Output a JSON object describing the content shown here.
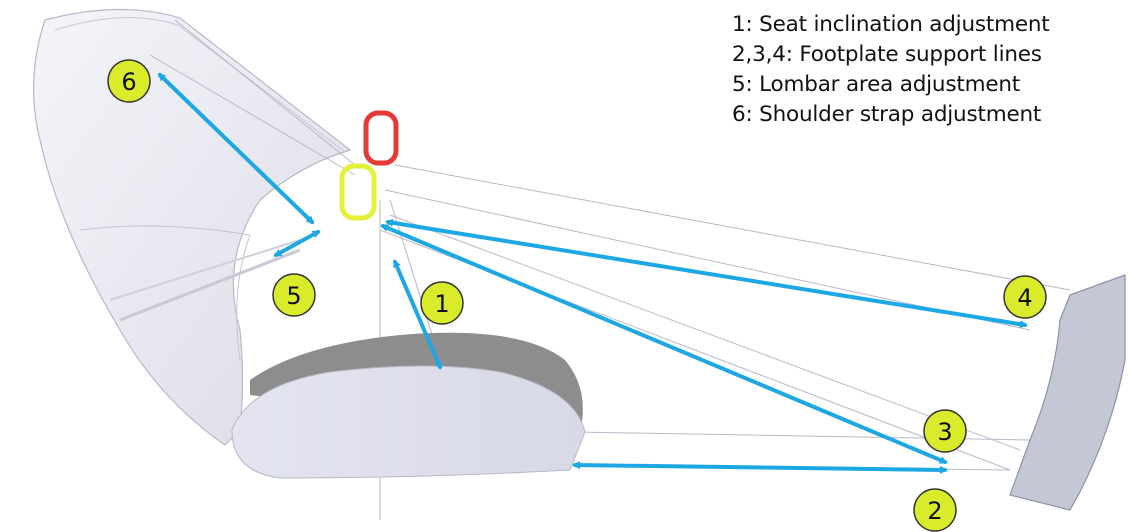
{
  "legend": {
    "items": [
      "1: Seat inclination adjustment",
      "2,3,4: Footplate support lines",
      "5: Lombar area adjustment",
      "6: Shoulder strap adjustment"
    ]
  },
  "badges": [
    {
      "label": "1"
    },
    {
      "label": "2"
    },
    {
      "label": "3"
    },
    {
      "label": "4"
    },
    {
      "label": "5"
    },
    {
      "label": "6"
    }
  ],
  "colors": {
    "arrow": "#1da7e4",
    "badge_fill": "#d9eb2b",
    "badge_stroke": "#333333",
    "carabiner_red": "#e53a35",
    "carabiner_yellow": "#e4f03a",
    "harness_shell": "#e9e9f3",
    "seat_board": "#e2e3ee",
    "seat_shadow": "#8a8a8a",
    "footplate": "#c4c8d6"
  }
}
